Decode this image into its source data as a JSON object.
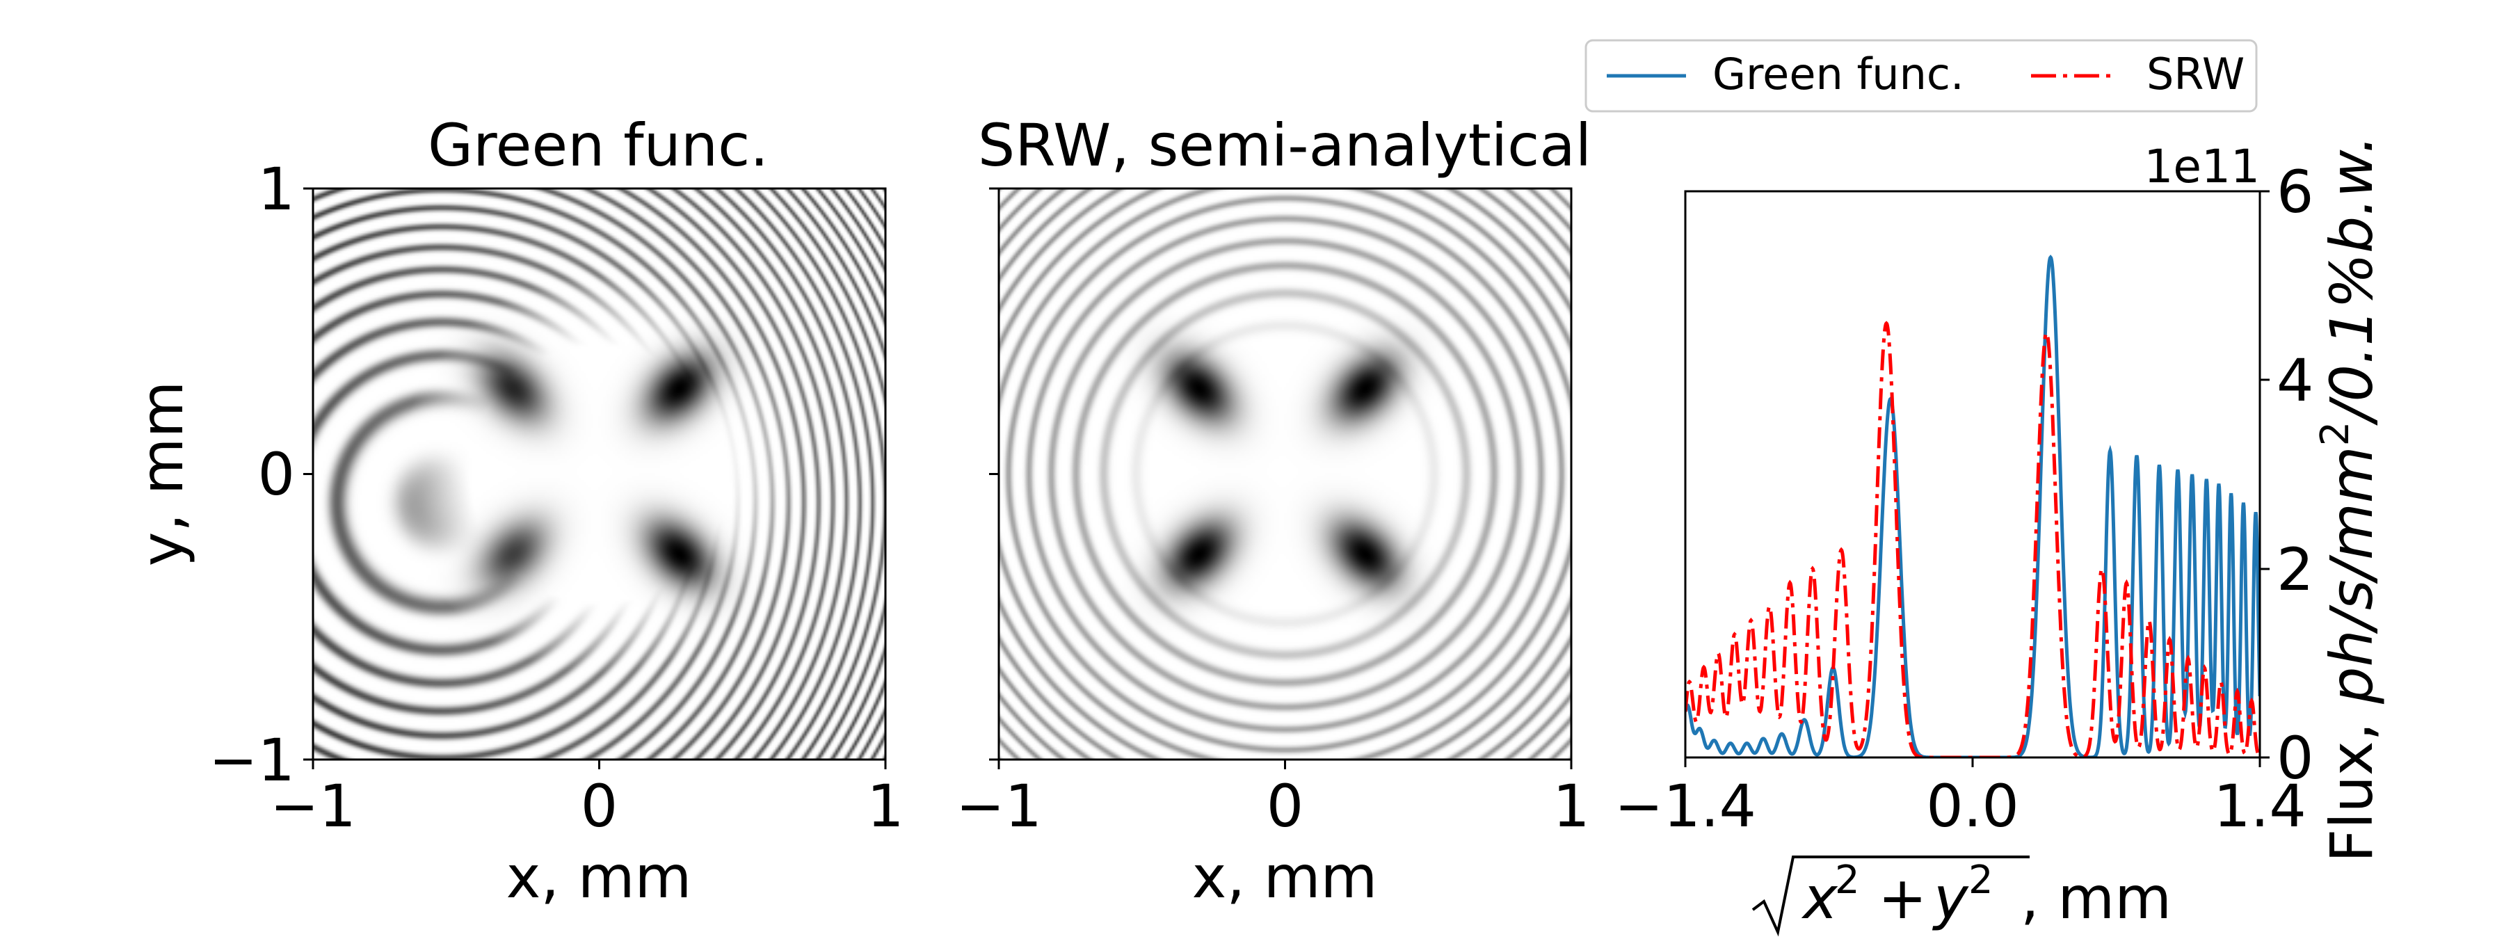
{
  "chart_data": [
    {
      "type": "heatmap",
      "title": "Green func.",
      "xlabel": "x, mm",
      "ylabel": "y, mm",
      "xlim": [
        -1,
        1
      ],
      "ylim": [
        -1,
        1
      ],
      "xticks": [
        "−1",
        "0",
        "1"
      ],
      "yticks": [
        "−1",
        "0",
        "1"
      ],
      "colormap": "gray_r",
      "pattern": {
        "lobes": [
          [
            -0.3,
            0.3
          ],
          [
            0.28,
            0.3
          ],
          [
            -0.3,
            -0.28
          ],
          [
            0.28,
            -0.28
          ]
        ],
        "lobe_weights": [
          0.85,
          1.0,
          0.75,
          1.0
        ],
        "ring_center": [
          -0.55,
          -0.1
        ],
        "ring_gain": 0.75
      }
    },
    {
      "type": "heatmap",
      "title": "SRW, semi-analytical",
      "xlabel": "x, mm",
      "ylabel": "",
      "xlim": [
        -1,
        1
      ],
      "ylim": [
        -1,
        1
      ],
      "xticks": [
        "−1",
        "0",
        "1"
      ],
      "colormap": "gray_r",
      "pattern": {
        "lobes": [
          [
            -0.3,
            0.3
          ],
          [
            0.28,
            0.3
          ],
          [
            -0.3,
            -0.28
          ],
          [
            0.28,
            -0.28
          ]
        ],
        "lobe_weights": [
          1.0,
          1.0,
          1.0,
          1.0
        ],
        "ring_center": [
          0.0,
          0.0
        ],
        "ring_gain": 0.45
      }
    },
    {
      "type": "line",
      "title": "",
      "xlabel": "√(x² + y²), mm",
      "ylabel": "Flux, ph/s/mm²/0.1%b.w.",
      "ylabel_parts": {
        "plain": "Flux, ",
        "math": "ph/s/mm",
        "sup": "2",
        "tail": "/0.1%b.w."
      },
      "xlabel_parts": {
        "x": "x",
        "y": "y",
        "two": "2",
        "plus": "+",
        "unit": ", mm"
      },
      "offset_text": "1e11",
      "y_axis_side": "right",
      "xlim": [
        -1.4,
        1.4
      ],
      "ylim": [
        0,
        6
      ],
      "xticks": [
        "−1.4",
        "0.0",
        "1.4"
      ],
      "yticks": [
        "0",
        "2",
        "4",
        "6"
      ],
      "legend_position": "top",
      "series": [
        {
          "name": "Green func.",
          "color": "#1f77b4",
          "dash": "solid",
          "peaks": [
            [
              -1.39,
              0.55
            ],
            [
              -1.33,
              0.3
            ],
            [
              -1.26,
              0.18
            ],
            [
              -1.18,
              0.15
            ],
            [
              -1.1,
              0.15
            ],
            [
              -1.02,
              0.2
            ],
            [
              -0.93,
              0.25
            ],
            [
              -0.82,
              0.4
            ],
            [
              -0.68,
              0.95
            ],
            [
              -0.4,
              3.8
            ],
            [
              0.38,
              5.3
            ],
            [
              0.67,
              3.25
            ],
            [
              0.8,
              3.2
            ],
            [
              0.91,
              3.1
            ],
            [
              1.0,
              3.05
            ],
            [
              1.07,
              3.0
            ],
            [
              1.14,
              2.95
            ],
            [
              1.2,
              2.9
            ],
            [
              1.26,
              2.8
            ],
            [
              1.32,
              2.7
            ],
            [
              1.38,
              2.6
            ]
          ],
          "widths": [
            0.02,
            0.02,
            0.02,
            0.02,
            0.02,
            0.02,
            0.022,
            0.024,
            0.027,
            0.045,
            0.045,
            0.022,
            0.019,
            0.017,
            0.016,
            0.015,
            0.014,
            0.013,
            0.012,
            0.012,
            0.012
          ]
        },
        {
          "name": "SRW",
          "color": "#ff0000",
          "dash": "dashdot",
          "peaks": [
            [
              -1.38,
              0.8
            ],
            [
              -1.31,
              0.95
            ],
            [
              -1.24,
              1.1
            ],
            [
              -1.16,
              1.3
            ],
            [
              -1.08,
              1.45
            ],
            [
              -0.99,
              1.6
            ],
            [
              -0.89,
              1.85
            ],
            [
              -0.78,
              2.0
            ],
            [
              -0.64,
              2.2
            ],
            [
              -0.42,
              4.6
            ],
            [
              0.36,
              4.5
            ],
            [
              0.63,
              2.0
            ],
            [
              0.75,
              1.85
            ],
            [
              0.86,
              1.45
            ],
            [
              0.96,
              1.25
            ],
            [
              1.05,
              1.05
            ],
            [
              1.13,
              0.95
            ],
            [
              1.21,
              0.8
            ],
            [
              1.29,
              0.7
            ],
            [
              1.36,
              0.6
            ]
          ],
          "widths": [
            0.02,
            0.02,
            0.021,
            0.022,
            0.023,
            0.024,
            0.025,
            0.026,
            0.03,
            0.045,
            0.045,
            0.026,
            0.022,
            0.02,
            0.018,
            0.017,
            0.016,
            0.015,
            0.014,
            0.013
          ]
        }
      ]
    }
  ]
}
